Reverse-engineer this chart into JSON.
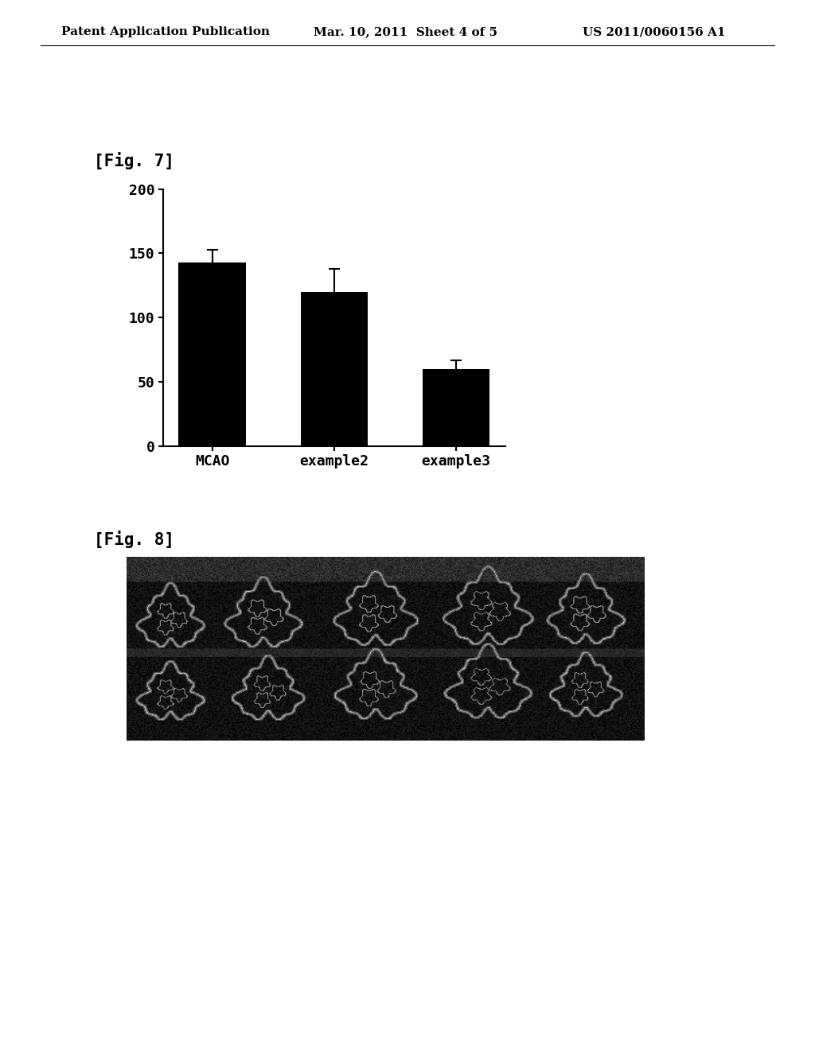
{
  "header_left": "Patent Application Publication",
  "header_middle": "Mar. 10, 2011  Sheet 4 of 5",
  "header_right": "US 2011/0060156 A1",
  "fig7_label": "[Fig. 7]",
  "fig8_label": "[Fig. 8]",
  "categories": [
    "MCAO",
    "example2",
    "example3"
  ],
  "values": [
    143,
    120,
    60
  ],
  "errors": [
    10,
    18,
    7
  ],
  "bar_color": "#000000",
  "background_color": "#ffffff",
  "ylim": [
    0,
    200
  ],
  "yticks": [
    0,
    50,
    100,
    150,
    200
  ],
  "bar_width": 0.55,
  "tick_fontsize": 13,
  "header_fontsize": 11
}
